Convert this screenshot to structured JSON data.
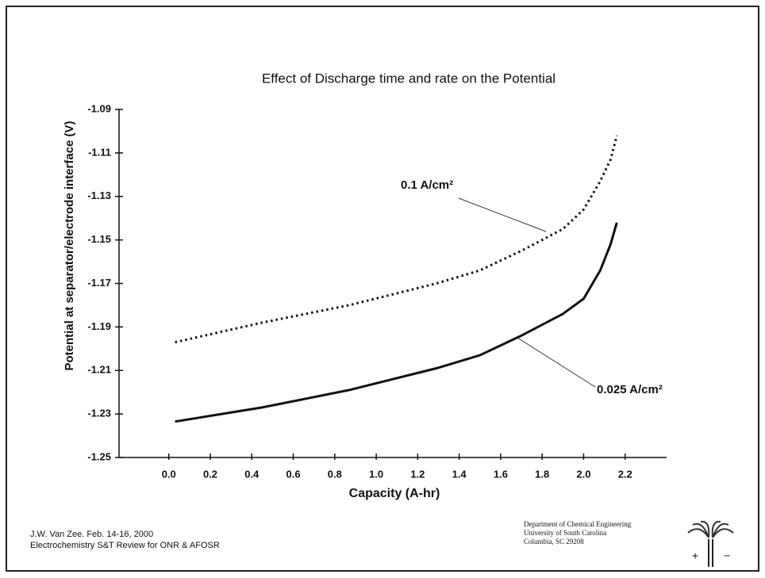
{
  "chart_data": {
    "type": "line",
    "title": "Effect of Discharge time and rate on the Potential",
    "x_label": "Capacity (A-hr)",
    "y_label": "Potential at separator/electrode interface (V)",
    "xlim": [
      -0.24,
      2.4
    ],
    "xticks": [
      {
        "value": 0,
        "label": "0.0"
      },
      0.2,
      0.4,
      0.6,
      0.8,
      {
        "value": 1,
        "label": "1.0"
      },
      1.2,
      1.4,
      1.6,
      1.8,
      {
        "value": 2,
        "label": "2.0"
      },
      2.2
    ],
    "ylim": [
      -1.25,
      -1.09
    ],
    "yticks": [
      -1.25,
      -1.23,
      -1.21,
      -1.19,
      -1.17,
      -1.15,
      -1.13,
      -1.11,
      -1.09
    ],
    "series": [
      {
        "name": "0.1 A/cm²",
        "color": "#111111",
        "dash": "dotted",
        "x": [
          0.03,
          0.45,
          0.87,
          1.29,
          1.5,
          1.7,
          1.9,
          2.0,
          2.08,
          2.13,
          2.16
        ],
        "values": [
          -1.197,
          -1.188,
          -1.18,
          -1.17,
          -1.164,
          -1.155,
          -1.145,
          -1.136,
          -1.123,
          -1.113,
          -1.102
        ]
      },
      {
        "name": "0.025 A/cm²",
        "color": "#111111",
        "dash": "solid",
        "x": [
          0.03,
          0.45,
          0.87,
          1.29,
          1.5,
          1.7,
          1.9,
          2.0,
          2.08,
          2.13,
          2.16
        ],
        "values": [
          -1.2335,
          -1.227,
          -1.219,
          -1.209,
          -1.203,
          -1.194,
          -1.184,
          -1.177,
          -1.164,
          -1.152,
          -1.142
        ]
      }
    ]
  },
  "footer": {
    "left": [
      "J.W. Van Zee.  Feb. 14-16, 2000",
      "Electrochemistry S&T Review for ONR & AFOSR"
    ],
    "right": [
      "Department of Chemical Engineering",
      "University of South Carolina",
      "Columbia, SC 29208"
    ],
    "signs": [
      "+",
      "−"
    ]
  }
}
